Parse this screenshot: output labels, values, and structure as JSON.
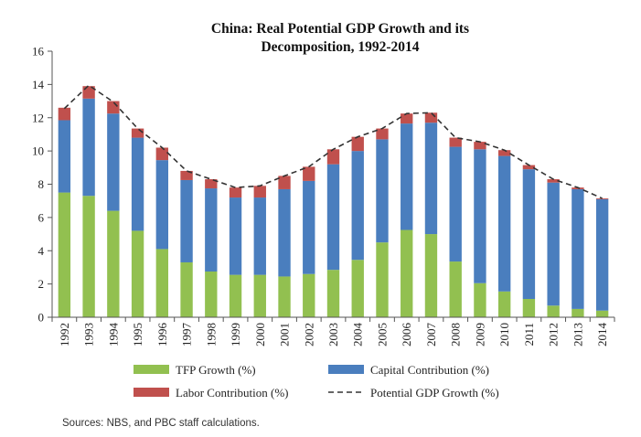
{
  "chart_data": {
    "type": "bar",
    "stacked": true,
    "title_line1": "China: Real Potential GDP Growth and its",
    "title_line2": "Decomposition, 1992-2014",
    "categories": [
      "1992",
      "1993",
      "1994",
      "1995",
      "1996",
      "1997",
      "1998",
      "1999",
      "2000",
      "2001",
      "2002",
      "2003",
      "2004",
      "2005",
      "2006",
      "2007",
      "2008",
      "2009",
      "2010",
      "2011",
      "2012",
      "2013",
      "2014"
    ],
    "ylim": [
      0,
      16
    ],
    "yticks": [
      "0",
      "2",
      "4",
      "6",
      "8",
      "10",
      "12",
      "14",
      "16"
    ],
    "grid": false,
    "legend_position": "bottom",
    "series": [
      {
        "name": "TFP Growth (%)",
        "color": "#92c050",
        "values": [
          7.5,
          7.3,
          6.4,
          5.2,
          4.1,
          3.3,
          2.75,
          2.55,
          2.55,
          2.45,
          2.6,
          2.85,
          3.45,
          4.5,
          5.25,
          5.0,
          3.35,
          2.05,
          1.55,
          1.1,
          0.7,
          0.5,
          0.4
        ]
      },
      {
        "name": "Capital Contribution (%)",
        "color": "#4a7ebe",
        "values": [
          4.35,
          5.85,
          5.85,
          5.6,
          5.35,
          4.95,
          5.0,
          4.65,
          4.65,
          5.25,
          5.6,
          6.35,
          6.55,
          6.2,
          6.4,
          6.7,
          6.9,
          8.05,
          8.15,
          7.8,
          7.4,
          7.2,
          6.7
        ]
      },
      {
        "name": "Labor Contribution (%)",
        "color": "#c0504d",
        "values": [
          0.75,
          0.75,
          0.75,
          0.55,
          0.75,
          0.55,
          0.55,
          0.6,
          0.7,
          0.8,
          0.85,
          0.9,
          0.85,
          0.65,
          0.6,
          0.6,
          0.55,
          0.45,
          0.35,
          0.25,
          0.2,
          0.1,
          0.05
        ]
      }
    ],
    "line_series": {
      "name": "Potential GDP Growth (%)",
      "style": "dashed",
      "color": "#333333",
      "values": [
        12.55,
        13.95,
        12.95,
        11.35,
        10.2,
        8.8,
        8.3,
        7.8,
        7.9,
        8.5,
        9.05,
        10.1,
        10.85,
        11.35,
        12.25,
        12.3,
        10.8,
        10.55,
        10.05,
        9.15,
        8.3,
        7.8,
        7.15
      ]
    },
    "legend": {
      "tfp": "TFP Growth (%)",
      "capital": "Capital Contribution (%)",
      "labor": "Labor Contribution (%)",
      "potential": "Potential GDP Growth (%)"
    },
    "source_note": "Sources: NBS, and PBC staff calculations."
  }
}
